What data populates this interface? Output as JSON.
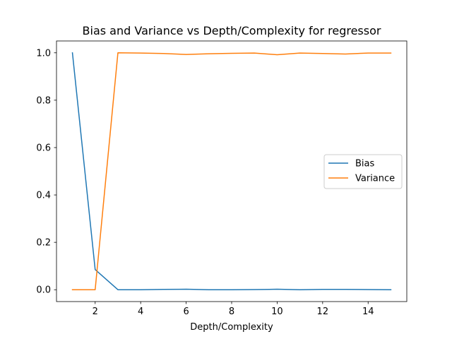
{
  "chart_data": {
    "type": "line",
    "title": "Bias and Variance vs Depth/Complexity for regressor",
    "xlabel": "Depth/Complexity",
    "ylabel": "",
    "x": [
      1,
      2,
      3,
      4,
      5,
      6,
      7,
      8,
      9,
      10,
      11,
      12,
      13,
      14,
      15
    ],
    "xlim": [
      0.3,
      15.7
    ],
    "ylim": [
      -0.05,
      1.05
    ],
    "xticks": [
      2,
      4,
      6,
      8,
      10,
      12,
      14
    ],
    "yticks": [
      0.0,
      0.2,
      0.4,
      0.6,
      0.8,
      1.0
    ],
    "xtick_labels": [
      "2",
      "4",
      "6",
      "8",
      "10",
      "12",
      "14"
    ],
    "ytick_labels": [
      "0.0",
      "0.2",
      "0.4",
      "0.6",
      "0.8",
      "1.0"
    ],
    "grid": false,
    "legend_position": "center-right",
    "series": [
      {
        "name": "Bias",
        "color": "#1f77b4",
        "values": [
          1.0,
          0.085,
          0.0,
          0.0,
          0.0015,
          0.002,
          0.0,
          0.0,
          0.0005,
          0.002,
          0.0,
          0.0015,
          0.0015,
          0.0005,
          0.0
        ]
      },
      {
        "name": "Variance",
        "color": "#ff7f0e",
        "values": [
          0.0,
          0.0,
          1.0,
          0.999,
          0.997,
          0.993,
          0.996,
          0.998,
          0.999,
          0.992,
          0.999,
          0.997,
          0.995,
          0.999,
          0.999
        ]
      }
    ]
  }
}
